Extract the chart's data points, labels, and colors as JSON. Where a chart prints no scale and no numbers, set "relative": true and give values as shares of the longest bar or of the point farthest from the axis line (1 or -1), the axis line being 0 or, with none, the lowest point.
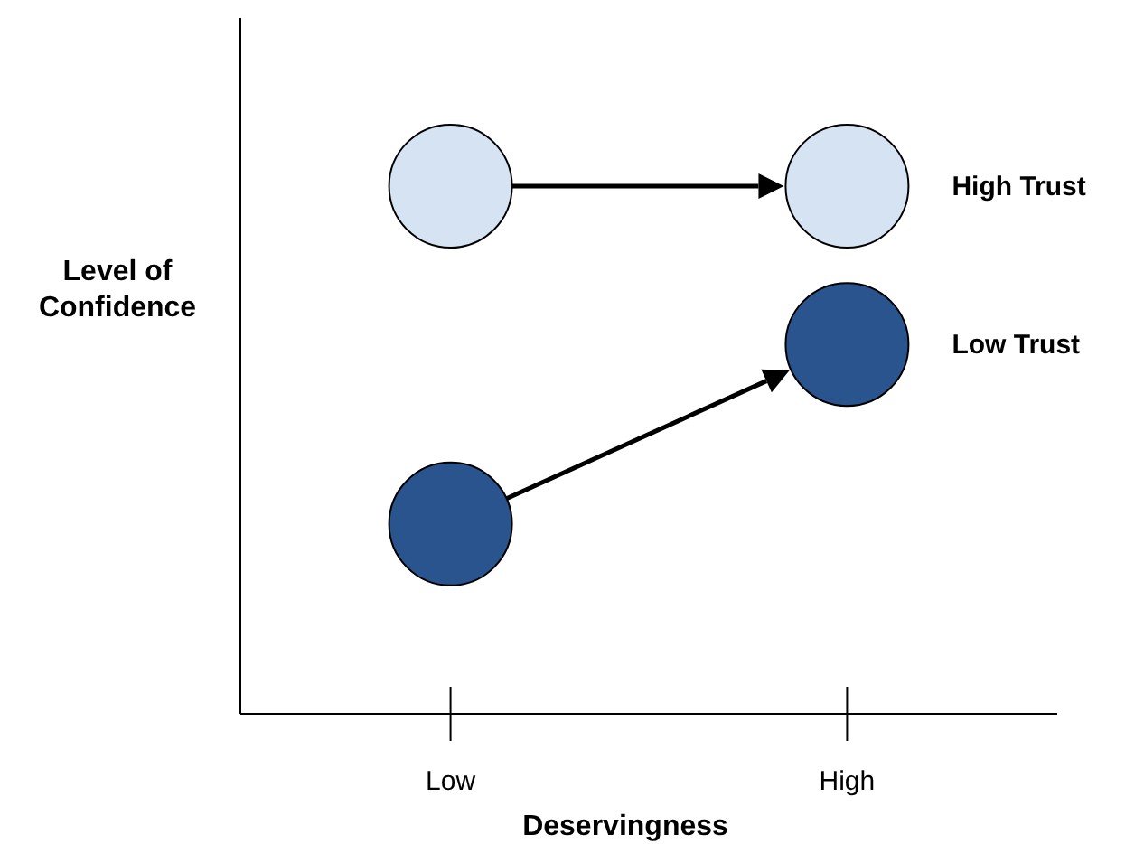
{
  "chart_data": {
    "type": "scatter",
    "relative": true,
    "xlabel": "Deservingness",
    "ylabel": "Level of\nConfidence",
    "categories": [
      "Low",
      "High"
    ],
    "marker": "circle",
    "series": [
      {
        "name": "High Trust",
        "color": "#d5e3f3",
        "values": [
          1,
          1
        ]
      },
      {
        "name": "Low Trust",
        "color": "#29548e",
        "values": [
          0.36,
          0.7
        ]
      }
    ]
  }
}
